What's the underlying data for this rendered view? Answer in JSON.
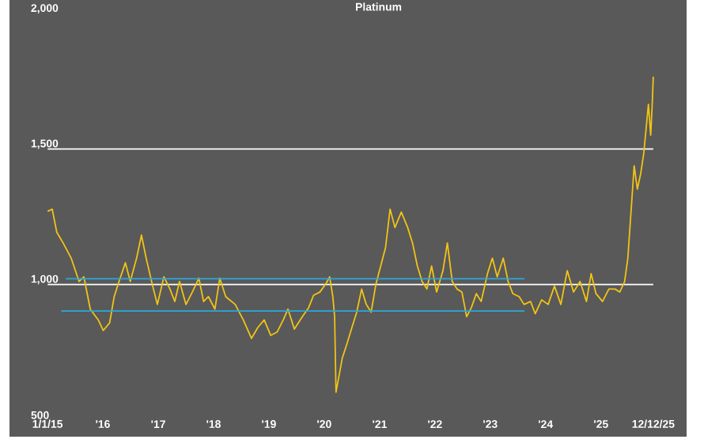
{
  "chart_data": {
    "type": "line",
    "title": "Platinum",
    "x": [
      "2015-01-02",
      "2015-02-01",
      "2015-03-03",
      "2015-04-14",
      "2015-06-06",
      "2015-07-28",
      "2015-08-29",
      "2015-10-10",
      "2015-12-02",
      "2016-01-04",
      "2016-02-15",
      "2016-03-16",
      "2016-04-17",
      "2016-05-29",
      "2016-06-30",
      "2016-08-11",
      "2016-09-12",
      "2016-10-13",
      "2016-11-25",
      "2016-12-26",
      "2017-02-07",
      "2017-03-19",
      "2017-04-20",
      "2017-05-21",
      "2017-07-03",
      "2017-08-14",
      "2017-09-26",
      "2017-10-27",
      "2017-11-28",
      "2018-01-10",
      "2018-02-11",
      "2018-03-22",
      "2018-05-24",
      "2018-07-16",
      "2018-09-08",
      "2018-10-20",
      "2018-12-01",
      "2019-01-13",
      "2019-02-24",
      "2019-04-06",
      "2019-05-07",
      "2019-06-18",
      "2019-08-10",
      "2019-09-21",
      "2019-10-23",
      "2019-12-04",
      "2020-01-16",
      "2020-02-06",
      "2020-02-27",
      "2020-03-10",
      "2020-03-19",
      "2020-04-29",
      "2020-06-01",
      "2020-07-02",
      "2020-08-03",
      "2020-09-04",
      "2020-10-05",
      "2020-11-06",
      "2020-12-07",
      "2021-01-08",
      "2021-02-09",
      "2021-03-11",
      "2021-04-12",
      "2021-05-24",
      "2021-07-05",
      "2021-08-06",
      "2021-09-07",
      "2021-10-08",
      "2021-11-09",
      "2021-12-10",
      "2022-01-12",
      "2022-02-23",
      "2022-03-24",
      "2022-04-25",
      "2022-05-27",
      "2022-06-28",
      "2022-07-29",
      "2022-08-30",
      "2022-10-01",
      "2022-11-02",
      "2022-12-14",
      "2023-01-15",
      "2023-02-16",
      "2023-03-28",
      "2023-04-29",
      "2023-05-30",
      "2023-07-11",
      "2023-08-12",
      "2023-09-24",
      "2023-10-25",
      "2023-12-06",
      "2024-01-18",
      "2024-02-29",
      "2024-04-11",
      "2024-05-23",
      "2024-07-04",
      "2024-08-16",
      "2024-09-27",
      "2024-10-28",
      "2024-11-29",
      "2025-01-11",
      "2025-02-22",
      "2025-04-04",
      "2025-05-05",
      "2025-06-06",
      "2025-06-27",
      "2025-07-18",
      "2025-08-08",
      "2025-08-29",
      "2025-09-20",
      "2025-10-10",
      "2025-11-10",
      "2025-11-25",
      "2025-12-05",
      "2025-12-12"
    ],
    "series": [
      {
        "color": "#f2c414",
        "values": [
          1270,
          1278,
          1193,
          1153,
          1097,
          1011,
          1028,
          909,
          869,
          830,
          858,
          955,
          1011,
          1080,
          1011,
          1097,
          1182,
          1097,
          994,
          926,
          1028,
          983,
          937,
          1011,
          926,
          972,
          1023,
          937,
          955,
          909,
          1023,
          955,
          926,
          869,
          801,
          841,
          869,
          812,
          824,
          869,
          909,
          835,
          881,
          915,
          960,
          972,
          1006,
          1028,
          955,
          881,
          602,
          727,
          784,
          841,
          898,
          983,
          926,
          898,
          1000,
          1068,
          1136,
          1278,
          1210,
          1267,
          1210,
          1153,
          1068,
          1011,
          983,
          1068,
          972,
          1051,
          1153,
          1011,
          983,
          972,
          881,
          915,
          966,
          937,
          1040,
          1097,
          1028,
          1097,
          1011,
          966,
          955,
          926,
          937,
          892,
          943,
          926,
          994,
          926,
          1051,
          972,
          1011,
          937,
          1040,
          966,
          937,
          983,
          983,
          972,
          1011,
          1097,
          1267,
          1438,
          1352,
          1409,
          1483,
          1665,
          1551,
          1665,
          1767
        ]
      },
      {
        "type": "line",
        "color": "#29a9dc",
        "x": [
          "2015-05-01",
          "2023-08-15"
        ],
        "values": [
          1021,
          1021
        ]
      },
      {
        "type": "line",
        "color": "#29a9dc",
        "x": [
          "2015-04-01",
          "2023-08-15"
        ],
        "values": [
          902,
          902
        ]
      }
    ],
    "xlim": [
      "2014-04-25",
      "2026-07-20"
    ],
    "xticks": [
      {
        "value": "2015-01-01",
        "label": "1/1/15"
      },
      {
        "value": "2016-01-01",
        "label": "'16"
      },
      {
        "value": "2017-01-01",
        "label": "'17"
      },
      {
        "value": "2018-01-01",
        "label": "'18"
      },
      {
        "value": "2019-01-01",
        "label": "'19"
      },
      {
        "value": "2020-01-01",
        "label": "'20"
      },
      {
        "value": "2021-01-01",
        "label": "'21"
      },
      {
        "value": "2022-01-01",
        "label": "'22"
      },
      {
        "value": "2023-01-01",
        "label": "'23"
      },
      {
        "value": "2024-01-01",
        "label": "'24"
      },
      {
        "value": "2025-01-01",
        "label": "'25"
      },
      {
        "value": "2025-12-12",
        "label": "12/12/25"
      }
    ],
    "ylim": [
      438,
      2050
    ],
    "yticks": [
      {
        "value": 500,
        "label": "500"
      },
      {
        "value": 1000,
        "label": "1,000"
      },
      {
        "value": 1500,
        "label": "1,500"
      },
      {
        "value": 2000,
        "label": "2,000"
      }
    ],
    "ref_lines": [
      {
        "axis": "y",
        "value": 1500,
        "color": "#ffffff"
      },
      {
        "axis": "y",
        "value": 1000,
        "color": "#ffffff"
      }
    ]
  }
}
